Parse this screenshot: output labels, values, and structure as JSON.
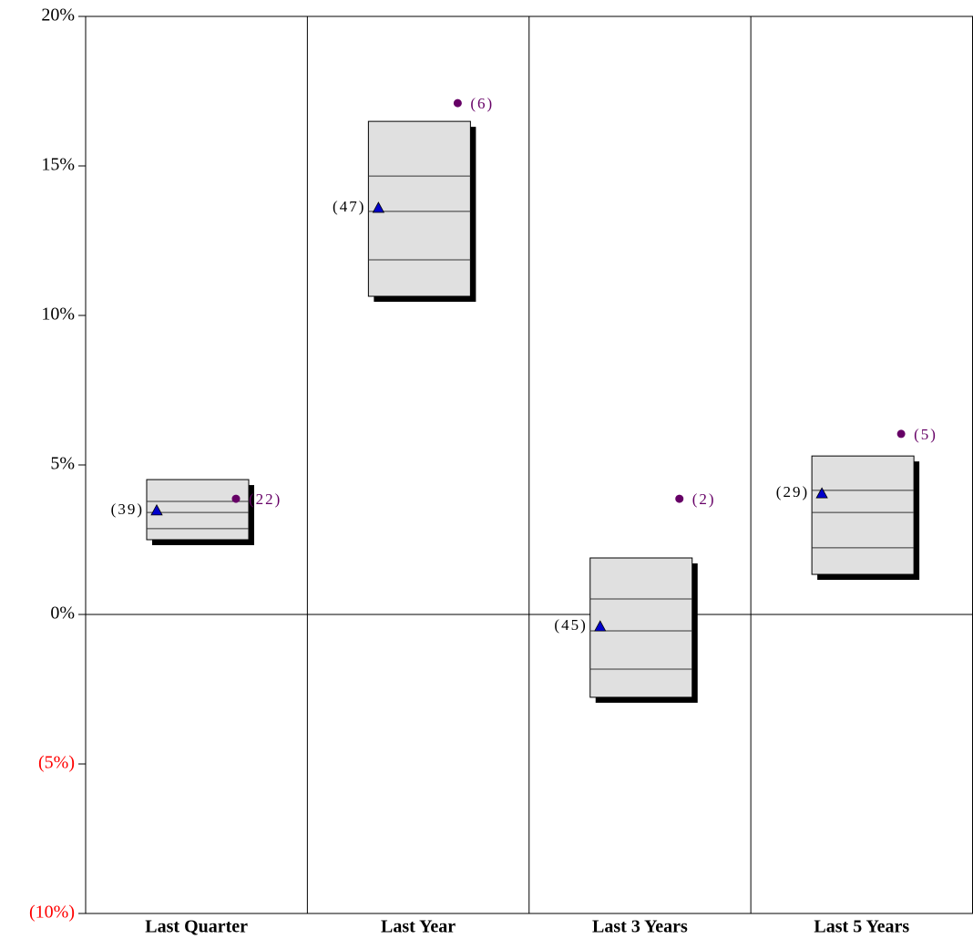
{
  "chart_data": {
    "type": "floating-box",
    "categories": [
      "Last Quarter",
      "Last Year",
      "Last 3 Years",
      "Last 5 Years"
    ],
    "ylim": [
      -10,
      20
    ],
    "yticks": [
      {
        "value": 20,
        "label": "20%"
      },
      {
        "value": 15,
        "label": "15%"
      },
      {
        "value": 10,
        "label": "10%"
      },
      {
        "value": 5,
        "label": "5%"
      },
      {
        "value": 0,
        "label": "0%"
      },
      {
        "value": -5,
        "label": "(5%)"
      },
      {
        "value": -10,
        "label": "(10%)"
      }
    ],
    "negative_tick_color": "#ff0000",
    "box_color": "#e0e0e0",
    "boxes": [
      {
        "high": 4.51,
        "q3": 3.78,
        "median": 3.41,
        "q1": 2.87,
        "low": 2.5
      },
      {
        "high": 16.49,
        "q3": 14.66,
        "median": 13.48,
        "q1": 11.86,
        "low": 10.64
      },
      {
        "high": 1.89,
        "q3": 0.52,
        "median": -0.55,
        "q1": -1.83,
        "low": -2.77
      },
      {
        "high": 5.3,
        "q3": 4.15,
        "median": 3.41,
        "q1": 2.23,
        "low": 1.34
      }
    ],
    "series": [
      {
        "marker": "triangle",
        "color": "#0000cc",
        "label_color": "#000000",
        "values": [
          3.48,
          13.6,
          -0.4,
          4.05
        ],
        "rank_labels": [
          "(39)",
          "(47)",
          "(45)",
          "(29)"
        ]
      },
      {
        "marker": "circle",
        "color": "#660066",
        "label_color": "#660066",
        "values": [
          3.87,
          17.1,
          3.87,
          6.04
        ],
        "rank_labels": [
          "(22)",
          "(6)",
          "(2)",
          "(5)"
        ]
      }
    ]
  }
}
